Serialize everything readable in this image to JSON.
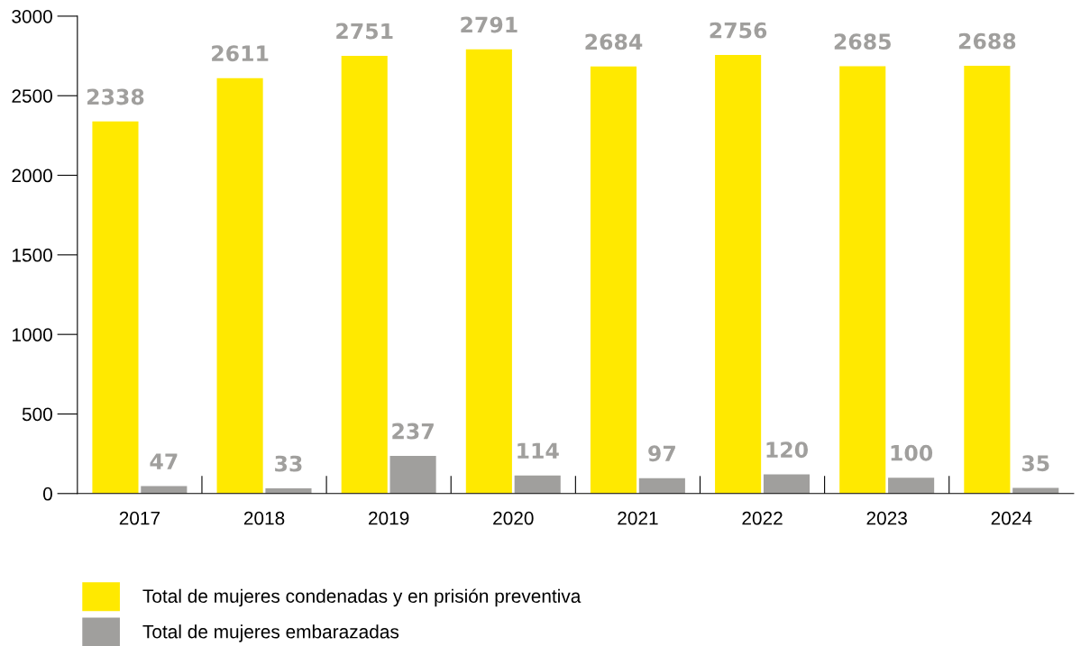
{
  "chart_data": {
    "type": "bar",
    "categories": [
      "2017",
      "2018",
      "2019",
      "2020",
      "2021",
      "2022",
      "2023",
      "2024"
    ],
    "series": [
      {
        "name": "Total de mujeres condenadas y en prisión preventiva",
        "color": "#ffe900",
        "values": [
          2338,
          2611,
          2751,
          2791,
          2684,
          2756,
          2685,
          2688
        ]
      },
      {
        "name": "Total de mujeres embarazadas",
        "color": "#a09f9d",
        "values": [
          47,
          33,
          237,
          114,
          97,
          120,
          100,
          35
        ]
      }
    ],
    "ylim": [
      0,
      3000
    ],
    "yticks": [
      0,
      500,
      1000,
      1500,
      2000,
      2500,
      3000
    ],
    "grid": false,
    "legend": "bottom",
    "data_labels": true
  }
}
